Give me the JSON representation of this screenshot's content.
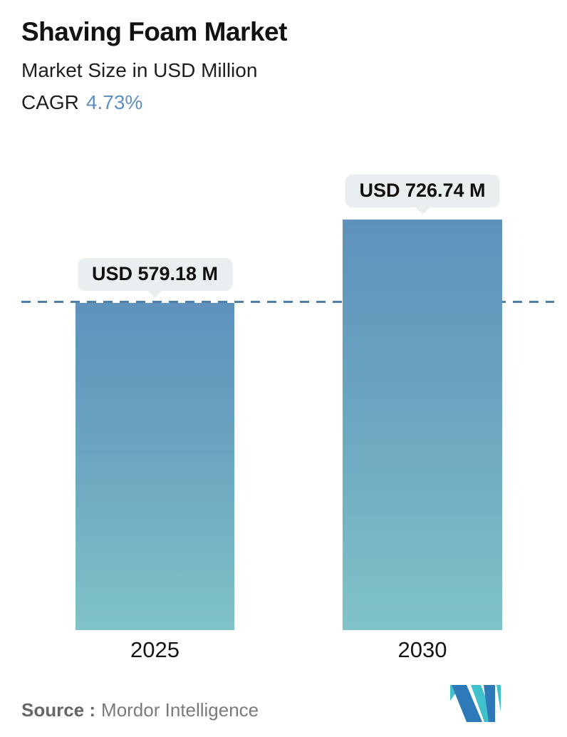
{
  "header": {
    "title": "Shaving Foam Market",
    "subtitle": "Market Size in USD Million",
    "cagr_label": "CAGR",
    "cagr_value": "4.73%"
  },
  "chart_data": {
    "type": "bar",
    "title": "Shaving Foam Market",
    "subtitle": "Market Size in USD Million",
    "cagr_percent": 4.73,
    "unit": "USD Million",
    "categories": [
      "2025",
      "2030"
    ],
    "values": [
      579.18,
      726.74
    ],
    "value_labels": [
      "USD 579.18 M",
      "USD 726.74 M"
    ],
    "ylim": [
      0,
      726.74
    ],
    "grid": "off",
    "legend": "none",
    "reference_line": {
      "value": 579.18,
      "style": "dashed",
      "color": "#4d80aa"
    },
    "bar_gradient": {
      "top": "#5e92bc",
      "bottom": "#80c3c7"
    },
    "callout_bg": "#e9eef0"
  },
  "footer": {
    "source_label": "Source :",
    "source_value": "Mordor Intelligence",
    "logo": "mordor-intelligence-logo",
    "logo_colors": {
      "blue": "#2e79b7",
      "teal": "#3fc0cb"
    }
  },
  "colors": {
    "cagr_value_text": "#5e8fbe",
    "title_text": "#121212",
    "axis_label_text": "#141414"
  }
}
